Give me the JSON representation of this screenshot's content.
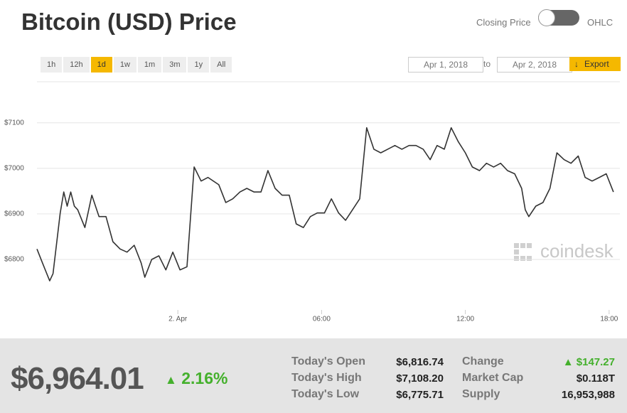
{
  "header": {
    "title": "Bitcoin (USD) Price",
    "toggle_left": "Closing Price",
    "toggle_right": "OHLC"
  },
  "range_buttons": [
    "1h",
    "12h",
    "1d",
    "1w",
    "1m",
    "3m",
    "1y",
    "All"
  ],
  "dates": {
    "from": "Apr 1, 2018",
    "separator": "to",
    "to": "Apr 2, 2018",
    "export": "Export"
  },
  "watermark": "coindesk",
  "chart_data": {
    "type": "line",
    "color": "#333333",
    "grid": true,
    "xlim": [
      18.12,
      42.45
    ],
    "xticks": [
      {
        "value": 24,
        "label": "2. Apr"
      },
      {
        "value": 30,
        "label": "06:00"
      },
      {
        "value": 36,
        "label": "12:00"
      },
      {
        "value": 42,
        "label": "18:00"
      }
    ],
    "ylim": [
      6683,
      7190
    ],
    "yticks": [
      {
        "value": 6800,
        "label": "$6800"
      },
      {
        "value": 6900,
        "label": "$6900"
      },
      {
        "value": 7000,
        "label": "$7000"
      },
      {
        "value": 7100,
        "label": "$7100"
      }
    ],
    "series": [
      {
        "name": "Closing Price",
        "x": [
          18.12,
          18.35,
          18.65,
          18.79,
          19.09,
          19.24,
          19.38,
          19.53,
          19.68,
          19.82,
          20.12,
          20.41,
          20.71,
          21.0,
          21.29,
          21.59,
          21.88,
          22.18,
          22.47,
          22.62,
          22.91,
          23.21,
          23.5,
          23.79,
          24.09,
          24.38,
          24.68,
          24.97,
          25.26,
          25.71,
          26.0,
          26.29,
          26.59,
          26.88,
          27.18,
          27.47,
          27.76,
          28.06,
          28.35,
          28.65,
          28.94,
          29.24,
          29.53,
          29.82,
          30.12,
          30.41,
          30.71,
          31.0,
          31.29,
          31.59,
          31.88,
          32.18,
          32.47,
          32.76,
          33.06,
          33.35,
          33.65,
          33.94,
          34.24,
          34.53,
          34.82,
          35.12,
          35.41,
          35.71,
          36.0,
          36.29,
          36.59,
          36.88,
          37.18,
          37.47,
          37.76,
          38.06,
          38.35,
          38.5,
          38.65,
          38.94,
          39.24,
          39.53,
          39.82,
          40.12,
          40.41,
          40.71,
          41.0,
          41.29,
          41.59,
          41.88,
          42.18
        ],
        "values": [
          6823,
          6792,
          6753,
          6769,
          6902,
          6948,
          6917,
          6948,
          6917,
          6909,
          6870,
          6941,
          6894,
          6894,
          6839,
          6823,
          6816,
          6831,
          6792,
          6761,
          6800,
          6808,
          6777,
          6816,
          6777,
          6784,
          7003,
          6972,
          6980,
          6964,
          6925,
          6933,
          6948,
          6956,
          6948,
          6948,
          6995,
          6956,
          6941,
          6941,
          6878,
          6870,
          6894,
          6902,
          6902,
          6933,
          6902,
          6886,
          6909,
          6933,
          7089,
          7042,
          7034,
          7042,
          7050,
          7042,
          7050,
          7050,
          7042,
          7019,
          7050,
          7042,
          7089,
          7058,
          7034,
          7003,
          6995,
          7011,
          7003,
          7011,
          6995,
          6988,
          6956,
          6909,
          6894,
          6917,
          6925,
          6956,
          7034,
          7019,
          7011,
          7027,
          6980,
          6972,
          6980,
          6988,
          6948
        ]
      }
    ]
  },
  "summary": {
    "price": "$6,964.01",
    "change_pct": "2.16%",
    "rows": [
      [
        "Today's Open",
        "$6,816.74",
        "Change",
        "$147.27"
      ],
      [
        "Today's High",
        "$7,108.20",
        "Market Cap",
        "$0.118T"
      ],
      [
        "Today's Low",
        "$6,775.71",
        "Supply",
        "16,953,988"
      ]
    ]
  }
}
